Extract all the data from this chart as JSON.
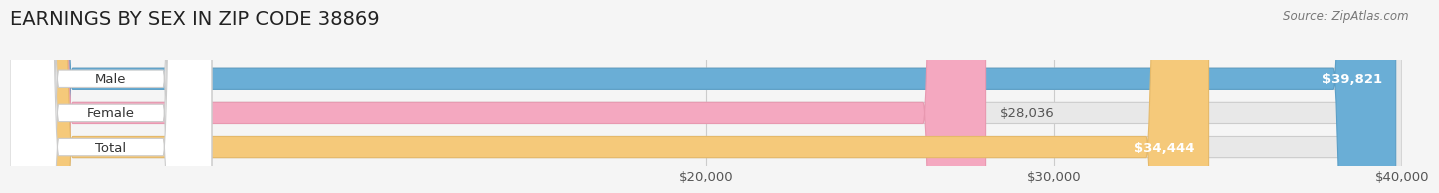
{
  "title": "EARNINGS BY SEX IN ZIP CODE 38869",
  "source": "Source: ZipAtlas.com",
  "categories": [
    "Male",
    "Female",
    "Total"
  ],
  "values": [
    39821,
    28036,
    34444
  ],
  "bar_colors": [
    "#6aaed6",
    "#f4a8c0",
    "#f5c97a"
  ],
  "bar_edge_colors": [
    "#5a9ec6",
    "#e898b0",
    "#e5b96a"
  ],
  "label_inside": [
    true,
    false,
    true
  ],
  "x_min": 0,
  "x_max": 40000,
  "x_ticks": [
    20000,
    30000,
    40000
  ],
  "x_tick_labels": [
    "$20,000",
    "$30,000",
    "$40,000"
  ],
  "background_color": "#f5f5f5",
  "bar_background_color": "#e8e8e8",
  "title_fontsize": 14,
  "label_fontsize": 9.5,
  "axis_fontsize": 9.5
}
